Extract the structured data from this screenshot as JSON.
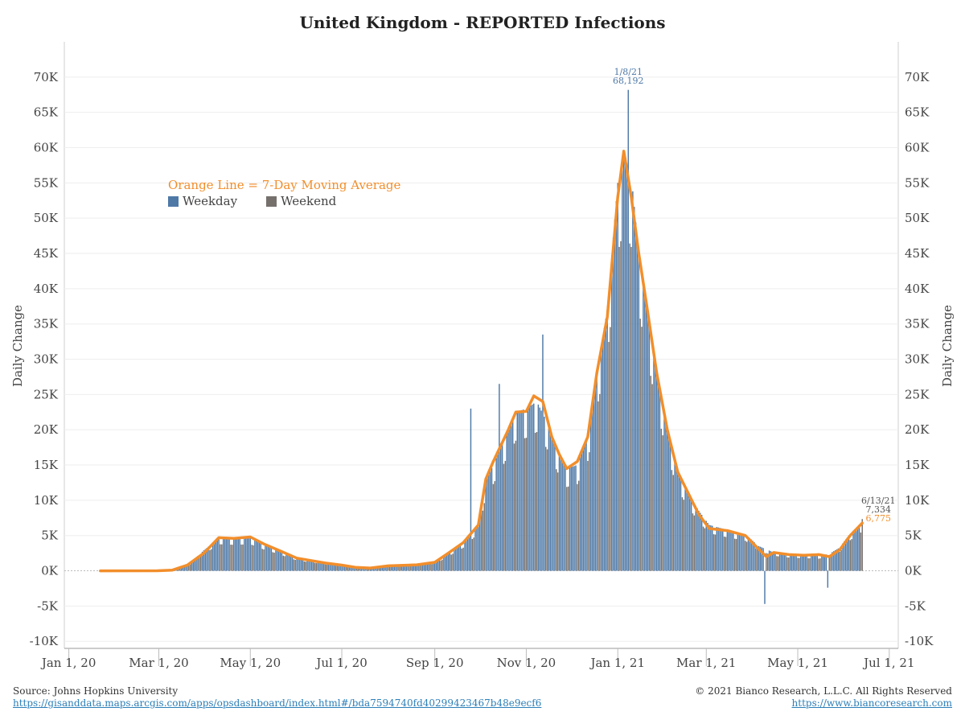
{
  "title": "United Kingdom - REPORTED Infections",
  "ylabel": "Daily Change",
  "legend": {
    "moving_average_label": "Orange Line = 7-Day Moving Average",
    "weekday_label": "Weekday",
    "weekend_label": "Weekend"
  },
  "colors": {
    "weekday": "#4e79a7",
    "weekend": "#76706c",
    "moving_average": "#f28e2b",
    "grid": "#eeeeee",
    "zero_line": "#bbbbbb"
  },
  "annotations": {
    "peak": {
      "date": "1/8/21",
      "value": "68,192"
    },
    "last": {
      "date": "6/13/21",
      "value": "7,334",
      "average": "6,775"
    }
  },
  "footer": {
    "source": "Source: Johns Hopkins University",
    "source_url": "https://gisanddata.maps.arcgis.com/apps/opsdashboard/index.html#/bda7594740fd40299423467b48e9ecf6",
    "copyright": "© 2021 Bianco Research, L.L.C. All Rights Reserved",
    "site_url": "https://www.biancoresearch.com"
  },
  "chart_data": {
    "type": "bar",
    "title": "United Kingdom - REPORTED Infections",
    "ylabel": "Daily Change",
    "x_range": [
      "2019-12-29",
      "2021-07-07"
    ],
    "ylim": [
      -11000,
      75000
    ],
    "y_ticks": [
      -10000,
      -5000,
      0,
      5000,
      10000,
      15000,
      20000,
      25000,
      30000,
      35000,
      40000,
      45000,
      50000,
      55000,
      60000,
      65000,
      70000
    ],
    "y_tick_labels": [
      "-10K",
      "-5K",
      "0K",
      "5K",
      "10K",
      "15K",
      "20K",
      "25K",
      "30K",
      "35K",
      "40K",
      "45K",
      "50K",
      "55K",
      "60K",
      "65K",
      "70K"
    ],
    "x_ticks": [
      "2020-01-01",
      "2020-03-01",
      "2020-05-01",
      "2020-07-01",
      "2020-09-01",
      "2020-11-01",
      "2021-01-01",
      "2021-03-01",
      "2021-05-01",
      "2021-07-01"
    ],
    "x_tick_labels": [
      "Jan 1, 20",
      "Mar 1, 20",
      "May 1, 20",
      "Jul 1, 20",
      "Sep 1, 20",
      "Nov 1, 20",
      "Jan 1, 21",
      "Mar 1, 21",
      "May 1, 21",
      "Jul 1, 21"
    ],
    "grid": true,
    "legend_position": "upper-left",
    "series": [
      {
        "name": "Daily reported infections",
        "kind": "bar",
        "start_date": "2020-01-22",
        "end_date": "2021-06-13",
        "anchors": [
          [
            "2020-01-22",
            0
          ],
          [
            "2020-02-29",
            5
          ],
          [
            "2020-03-10",
            50
          ],
          [
            "2020-03-20",
            700
          ],
          [
            "2020-03-31",
            2900
          ],
          [
            "2020-04-10",
            4600
          ],
          [
            "2020-04-20",
            4500
          ],
          [
            "2020-05-01",
            4600
          ],
          [
            "2020-05-10",
            3700
          ],
          [
            "2020-05-20",
            2900
          ],
          [
            "2020-06-01",
            1800
          ],
          [
            "2020-06-20",
            1100
          ],
          [
            "2020-07-01",
            800
          ],
          [
            "2020-07-10",
            600
          ],
          [
            "2020-07-20",
            450
          ],
          [
            "2020-08-01",
            700
          ],
          [
            "2020-08-20",
            900
          ],
          [
            "2020-09-01",
            1200
          ],
          [
            "2020-09-10",
            2500
          ],
          [
            "2020-09-20",
            4000
          ],
          [
            "2020-09-30",
            6500
          ],
          [
            "2020-10-05",
            13000
          ],
          [
            "2020-10-10",
            15000
          ],
          [
            "2020-10-20",
            20000
          ],
          [
            "2020-10-25",
            22500
          ],
          [
            "2020-11-01",
            23000
          ],
          [
            "2020-11-08",
            24000
          ],
          [
            "2020-11-15",
            21000
          ],
          [
            "2020-11-22",
            17000
          ],
          [
            "2020-11-28",
            14500
          ],
          [
            "2020-12-05",
            15000
          ],
          [
            "2020-12-12",
            19000
          ],
          [
            "2020-12-18",
            28000
          ],
          [
            "2020-12-25",
            37000
          ],
          [
            "2021-01-01",
            55000
          ],
          [
            "2021-01-05",
            59000
          ],
          [
            "2021-01-10",
            56000
          ],
          [
            "2021-01-15",
            45000
          ],
          [
            "2021-01-20",
            38000
          ],
          [
            "2021-01-27",
            28000
          ],
          [
            "2021-02-03",
            20000
          ],
          [
            "2021-02-10",
            14000
          ],
          [
            "2021-02-17",
            11000
          ],
          [
            "2021-02-24",
            8500
          ],
          [
            "2021-03-03",
            6500
          ],
          [
            "2021-03-15",
            5800
          ],
          [
            "2021-03-27",
            5200
          ],
          [
            "2021-04-05",
            3500
          ],
          [
            "2021-04-15",
            2600
          ],
          [
            "2021-04-25",
            2300
          ],
          [
            "2021-05-05",
            2200
          ],
          [
            "2021-05-15",
            2100
          ],
          [
            "2021-05-22",
            2400
          ],
          [
            "2021-05-29",
            3300
          ],
          [
            "2021-06-05",
            5300
          ],
          [
            "2021-06-13",
            6800
          ]
        ],
        "outliers": [
          [
            "2020-09-25",
            23000
          ],
          [
            "2020-10-14",
            26500
          ],
          [
            "2020-11-12",
            33500
          ],
          [
            "2021-01-08",
            68192
          ],
          [
            "2021-04-09",
            -4700
          ],
          [
            "2021-05-21",
            -2400
          ],
          [
            "2021-06-13",
            7334
          ]
        ]
      },
      {
        "name": "7-Day Moving Average",
        "kind": "line",
        "points": [
          [
            "2020-01-22",
            0
          ],
          [
            "2020-02-29",
            5
          ],
          [
            "2020-03-10",
            100
          ],
          [
            "2020-03-20",
            800
          ],
          [
            "2020-03-31",
            2500
          ],
          [
            "2020-04-10",
            4700
          ],
          [
            "2020-04-20",
            4600
          ],
          [
            "2020-05-01",
            4800
          ],
          [
            "2020-05-10",
            3800
          ],
          [
            "2020-05-20",
            2900
          ],
          [
            "2020-06-01",
            1800
          ],
          [
            "2020-06-20",
            1100
          ],
          [
            "2020-07-01",
            800
          ],
          [
            "2020-07-10",
            500
          ],
          [
            "2020-07-20",
            400
          ],
          [
            "2020-08-01",
            700
          ],
          [
            "2020-08-20",
            850
          ],
          [
            "2020-09-01",
            1200
          ],
          [
            "2020-09-10",
            2500
          ],
          [
            "2020-09-20",
            4000
          ],
          [
            "2020-09-30",
            6500
          ],
          [
            "2020-10-05",
            13000
          ],
          [
            "2020-10-10",
            15500
          ],
          [
            "2020-10-20",
            20000
          ],
          [
            "2020-10-25",
            22500
          ],
          [
            "2020-11-01",
            22600
          ],
          [
            "2020-11-06",
            24800
          ],
          [
            "2020-11-12",
            24000
          ],
          [
            "2020-11-18",
            19000
          ],
          [
            "2020-11-23",
            16500
          ],
          [
            "2020-11-28",
            14500
          ],
          [
            "2020-12-05",
            15500
          ],
          [
            "2020-12-12",
            19000
          ],
          [
            "2020-12-18",
            28000
          ],
          [
            "2020-12-25",
            36000
          ],
          [
            "2021-01-01",
            53000
          ],
          [
            "2021-01-05",
            59500
          ],
          [
            "2021-01-10",
            53000
          ],
          [
            "2021-01-15",
            45000
          ],
          [
            "2021-01-20",
            38000
          ],
          [
            "2021-01-27",
            28000
          ],
          [
            "2021-02-03",
            20000
          ],
          [
            "2021-02-10",
            14000
          ],
          [
            "2021-02-17",
            11000
          ],
          [
            "2021-02-24",
            8000
          ],
          [
            "2021-03-03",
            6000
          ],
          [
            "2021-03-15",
            5700
          ],
          [
            "2021-03-27",
            5000
          ],
          [
            "2021-04-03",
            3500
          ],
          [
            "2021-04-10",
            2000
          ],
          [
            "2021-04-15",
            2600
          ],
          [
            "2021-04-25",
            2300
          ],
          [
            "2021-05-05",
            2200
          ],
          [
            "2021-05-15",
            2300
          ],
          [
            "2021-05-22",
            2000
          ],
          [
            "2021-05-29",
            3000
          ],
          [
            "2021-06-05",
            5000
          ],
          [
            "2021-06-13",
            6775
          ]
        ]
      }
    ]
  }
}
